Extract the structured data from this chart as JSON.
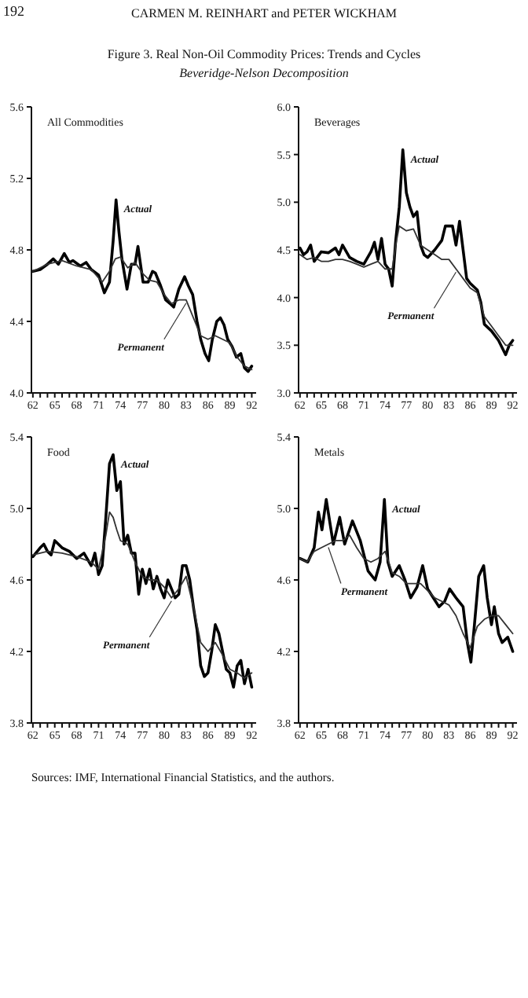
{
  "chart_data": [
    {
      "type": "line",
      "title": "All Commodities",
      "xlim": [
        61.8,
        92.6
      ],
      "ylim": [
        4.0,
        5.6
      ],
      "xticks": [
        62,
        {
          "value": 63,
          "label": null
        },
        {
          "value": 64,
          "label": null
        },
        65,
        {
          "value": 66,
          "label": null
        },
        {
          "value": 67,
          "label": null
        },
        68,
        {
          "value": 69,
          "label": null
        },
        {
          "value": 70,
          "label": null
        },
        71,
        {
          "value": 72,
          "label": null
        },
        {
          "value": 73,
          "label": null
        },
        74,
        {
          "value": 75,
          "label": null
        },
        {
          "value": 76,
          "label": null
        },
        77,
        {
          "value": 78,
          "label": null
        },
        {
          "value": 79,
          "label": null
        },
        80,
        {
          "value": 81,
          "label": null
        },
        {
          "value": 82,
          "label": null
        },
        83,
        {
          "value": 84,
          "label": null
        },
        {
          "value": 85,
          "label": null
        },
        86,
        {
          "value": 87,
          "label": null
        },
        {
          "value": 88,
          "label": null
        },
        89,
        {
          "value": 90,
          "label": null
        },
        {
          "value": 91,
          "label": null
        },
        92
      ],
      "yticks": [
        {
          "value": 4.0,
          "label": "4.0"
        },
        4.4,
        4.8,
        5.2,
        5.6
      ],
      "series": [
        {
          "color": "#000000",
          "x": [
            62,
            63,
            64,
            64.8,
            65.5,
            66.3,
            67,
            67.5,
            68.5,
            69.3,
            70,
            71,
            71.8,
            72.5,
            73,
            73.4,
            73.8,
            74.2,
            74.9,
            75.5,
            76,
            76.4,
            77.1,
            77.8,
            78.4,
            78.8,
            79.5,
            80.2,
            80.8,
            81.3,
            82,
            82.8,
            83.3,
            83.9,
            84.5,
            85,
            85.6,
            86.1,
            86.6,
            87.2,
            87.7,
            88.2,
            88.7,
            89.3,
            89.9,
            90.5,
            91,
            91.5,
            92
          ],
          "values": [
            4.68,
            4.69,
            4.72,
            4.75,
            4.72,
            4.78,
            4.73,
            4.74,
            4.71,
            4.73,
            4.69,
            4.66,
            4.56,
            4.62,
            4.85,
            5.08,
            4.9,
            4.75,
            4.58,
            4.72,
            4.72,
            4.82,
            4.62,
            4.62,
            4.68,
            4.67,
            4.6,
            4.52,
            4.5,
            4.48,
            4.58,
            4.65,
            4.6,
            4.55,
            4.4,
            4.3,
            4.22,
            4.18,
            4.3,
            4.4,
            4.42,
            4.38,
            4.3,
            4.26,
            4.2,
            4.22,
            4.14,
            4.12,
            4.15
          ]
        },
        {
          "color": "#333333",
          "x": [
            62,
            64,
            66,
            68,
            70,
            71.5,
            72.5,
            73.3,
            74,
            75,
            76,
            77,
            78,
            79,
            80,
            81,
            82,
            83,
            84,
            85,
            86,
            87,
            88,
            89,
            90,
            91,
            92
          ],
          "values": [
            4.68,
            4.72,
            4.74,
            4.71,
            4.69,
            4.62,
            4.68,
            4.75,
            4.76,
            4.7,
            4.73,
            4.67,
            4.63,
            4.62,
            4.55,
            4.5,
            4.52,
            4.52,
            4.42,
            4.32,
            4.3,
            4.32,
            4.3,
            4.28,
            4.2,
            4.15,
            4.13
          ]
        }
      ],
      "annotations": [
        "192",
        "CARMEN M. REINHART and PETER WICKHAM",
        "Figure 3. Real Non-Oil Commodity Prices: Trends and Cycles",
        "Beveridge-Nelson Decomposition",
        "Sources: IMF, International Financial Statistics, and the authors.",
        {
          "text": "Actual",
          "x": 73.4,
          "y": 5.08
        },
        {
          "text": "Permanent",
          "x": 83,
          "y": 4.52
        }
      ]
    },
    {
      "type": "line",
      "title": "Beverages",
      "xlim": [
        61.8,
        92.6
      ],
      "ylim": [
        3.0,
        6.0
      ],
      "xticks": [
        62,
        {
          "value": 63,
          "label": null
        },
        {
          "value": 64,
          "label": null
        },
        65,
        {
          "value": 66,
          "label": null
        },
        {
          "value": 67,
          "label": null
        },
        68,
        {
          "value": 69,
          "label": null
        },
        {
          "value": 70,
          "label": null
        },
        71,
        {
          "value": 72,
          "label": null
        },
        {
          "value": 73,
          "label": null
        },
        74,
        {
          "value": 75,
          "label": null
        },
        {
          "value": 76,
          "label": null
        },
        77,
        {
          "value": 78,
          "label": null
        },
        {
          "value": 79,
          "label": null
        },
        80,
        {
          "value": 81,
          "label": null
        },
        {
          "value": 82,
          "label": null
        },
        83,
        {
          "value": 84,
          "label": null
        },
        {
          "value": 85,
          "label": null
        },
        86,
        {
          "value": 87,
          "label": null
        },
        {
          "value": 88,
          "label": null
        },
        89,
        {
          "value": 90,
          "label": null
        },
        {
          "value": 91,
          "label": null
        },
        92
      ],
      "yticks": [
        {
          "value": 3.0,
          "label": "3.0"
        },
        3.5,
        {
          "value": 4.0,
          "label": "4.0"
        },
        4.5,
        {
          "value": 5.0,
          "label": "5.0"
        },
        5.5,
        {
          "value": 6.0,
          "label": "6.0"
        }
      ],
      "series": [
        {
          "color": "#000000",
          "x": [
            62,
            62.5,
            63,
            63.5,
            64,
            65,
            66,
            67,
            67.5,
            68,
            69,
            70,
            71,
            72,
            72.5,
            73,
            73.5,
            74,
            74.5,
            75,
            75.5,
            76,
            76.5,
            77,
            77.5,
            78,
            78.5,
            79,
            79.5,
            80,
            81,
            82,
            82.5,
            83.5,
            84,
            84.5,
            85,
            85.5,
            86,
            87,
            87.5,
            88,
            89,
            90,
            91,
            91.5,
            92
          ],
          "values": [
            4.52,
            4.45,
            4.48,
            4.55,
            4.38,
            4.48,
            4.47,
            4.52,
            4.45,
            4.55,
            4.42,
            4.38,
            4.35,
            4.48,
            4.58,
            4.4,
            4.62,
            4.35,
            4.3,
            4.12,
            4.6,
            4.95,
            5.55,
            5.1,
            4.95,
            4.85,
            4.9,
            4.55,
            4.45,
            4.42,
            4.5,
            4.6,
            4.75,
            4.75,
            4.55,
            4.8,
            4.5,
            4.2,
            4.15,
            4.08,
            3.95,
            3.72,
            3.65,
            3.55,
            3.4,
            3.5,
            3.55
          ]
        },
        {
          "color": "#333333",
          "x": [
            62,
            63,
            64,
            65,
            66,
            67,
            68,
            69,
            70,
            71,
            72,
            73,
            74,
            75,
            75.5,
            76,
            77,
            78,
            79,
            80,
            81,
            82,
            83,
            84,
            85,
            86,
            87,
            88,
            89,
            90,
            91,
            92
          ],
          "values": [
            4.45,
            4.4,
            4.42,
            4.38,
            4.38,
            4.4,
            4.4,
            4.38,
            4.35,
            4.32,
            4.35,
            4.38,
            4.3,
            4.3,
            4.55,
            4.75,
            4.7,
            4.72,
            4.55,
            4.5,
            4.45,
            4.4,
            4.4,
            4.3,
            4.2,
            4.1,
            4.05,
            3.8,
            3.7,
            3.6,
            3.5,
            3.5
          ]
        }
      ],
      "annotations": [
        {
          "text": "Actual",
          "x": 76.5,
          "y": 5.55
        },
        {
          "text": "Permanent",
          "x": 84,
          "y": 4.3
        }
      ]
    },
    {
      "type": "line",
      "title": "Food",
      "xlim": [
        61.8,
        92.6
      ],
      "ylim": [
        3.8,
        5.4
      ],
      "xticks": [
        62,
        {
          "value": 63,
          "label": null
        },
        {
          "value": 64,
          "label": null
        },
        65,
        {
          "value": 66,
          "label": null
        },
        {
          "value": 67,
          "label": null
        },
        68,
        {
          "value": 69,
          "label": null
        },
        {
          "value": 70,
          "label": null
        },
        71,
        {
          "value": 72,
          "label": null
        },
        {
          "value": 73,
          "label": null
        },
        74,
        {
          "value": 75,
          "label": null
        },
        {
          "value": 76,
          "label": null
        },
        77,
        {
          "value": 78,
          "label": null
        },
        {
          "value": 79,
          "label": null
        },
        80,
        {
          "value": 81,
          "label": null
        },
        {
          "value": 82,
          "label": null
        },
        83,
        {
          "value": 84,
          "label": null
        },
        {
          "value": 85,
          "label": null
        },
        86,
        {
          "value": 87,
          "label": null
        },
        {
          "value": 88,
          "label": null
        },
        89,
        {
          "value": 90,
          "label": null
        },
        {
          "value": 91,
          "label": null
        },
        92
      ],
      "yticks": [
        3.8,
        4.2,
        4.6,
        {
          "value": 5.0,
          "label": "5.0"
        },
        5.4
      ],
      "series": [
        {
          "color": "#000000",
          "x": [
            62,
            63,
            63.5,
            64,
            64.5,
            65,
            66,
            67,
            68,
            69,
            70,
            70.5,
            71,
            71.5,
            72,
            72.5,
            73,
            73.5,
            74,
            74.5,
            75,
            75.5,
            76,
            76.5,
            77,
            77.5,
            78,
            78.5,
            79,
            79.5,
            80,
            80.5,
            81,
            81.5,
            82,
            82.5,
            83,
            83.5,
            84,
            84.5,
            85,
            85.5,
            86,
            86.5,
            87,
            87.5,
            88,
            88.5,
            89,
            89.5,
            90,
            90.5,
            91,
            91.5,
            92
          ],
          "values": [
            4.73,
            4.78,
            4.8,
            4.76,
            4.74,
            4.82,
            4.78,
            4.76,
            4.72,
            4.75,
            4.68,
            4.75,
            4.63,
            4.68,
            4.95,
            5.25,
            5.3,
            5.1,
            5.15,
            4.8,
            4.85,
            4.75,
            4.75,
            4.52,
            4.66,
            4.58,
            4.66,
            4.55,
            4.62,
            4.55,
            4.5,
            4.6,
            4.55,
            4.5,
            4.52,
            4.68,
            4.68,
            4.6,
            4.45,
            4.32,
            4.12,
            4.06,
            4.08,
            4.2,
            4.35,
            4.3,
            4.2,
            4.1,
            4.08,
            4.0,
            4.12,
            4.15,
            4.02,
            4.1,
            4.0
          ]
        },
        {
          "color": "#333333",
          "x": [
            62,
            64,
            66,
            68,
            70,
            71,
            72,
            72.5,
            73,
            73.5,
            74,
            75,
            76,
            77,
            78,
            79,
            80,
            81,
            82,
            83,
            84,
            85,
            86,
            87,
            88,
            89,
            90,
            91,
            92
          ],
          "values": [
            4.74,
            4.76,
            4.75,
            4.73,
            4.7,
            4.66,
            4.85,
            4.98,
            4.95,
            4.88,
            4.82,
            4.8,
            4.7,
            4.62,
            4.6,
            4.6,
            4.56,
            4.5,
            4.55,
            4.62,
            4.45,
            4.25,
            4.2,
            4.25,
            4.18,
            4.1,
            4.08,
            4.05,
            4.08
          ]
        }
      ],
      "annotations": [
        {
          "text": "Actual",
          "x": 73,
          "y": 5.3
        },
        {
          "text": "Permanent",
          "x": 81,
          "y": 4.5
        }
      ]
    },
    {
      "type": "line",
      "title": "Metals",
      "xlim": [
        61.8,
        92.6
      ],
      "ylim": [
        3.8,
        5.4
      ],
      "xticks": [
        62,
        {
          "value": 63,
          "label": null
        },
        {
          "value": 64,
          "label": null
        },
        65,
        {
          "value": 66,
          "label": null
        },
        {
          "value": 67,
          "label": null
        },
        68,
        {
          "value": 69,
          "label": null
        },
        {
          "value": 70,
          "label": null
        },
        71,
        {
          "value": 72,
          "label": null
        },
        {
          "value": 73,
          "label": null
        },
        74,
        {
          "value": 75,
          "label": null
        },
        {
          "value": 76,
          "label": null
        },
        77,
        {
          "value": 78,
          "label": null
        },
        {
          "value": 79,
          "label": null
        },
        80,
        {
          "value": 81,
          "label": null
        },
        {
          "value": 82,
          "label": null
        },
        83,
        {
          "value": 84,
          "label": null
        },
        {
          "value": 85,
          "label": null
        },
        86,
        {
          "value": 87,
          "label": null
        },
        {
          "value": 88,
          "label": null
        },
        89,
        {
          "value": 90,
          "label": null
        },
        {
          "value": 91,
          "label": null
        },
        92
      ],
      "yticks": [
        3.8,
        4.2,
        4.6,
        {
          "value": 5.0,
          "label": "5.0"
        },
        5.4
      ],
      "series": [
        {
          "color": "#000000",
          "x": [
            62,
            63.1,
            64,
            64.6,
            65.1,
            65.7,
            66.7,
            67.6,
            68.3,
            69.4,
            70.5,
            71.6,
            72.6,
            73.3,
            73.9,
            74.4,
            75,
            76,
            76.8,
            77.6,
            78.5,
            79.3,
            80,
            80.8,
            81.6,
            82.4,
            83.1,
            84,
            85,
            85.6,
            86.1,
            86.6,
            87.2,
            87.9,
            88.4,
            89,
            89.4,
            90,
            90.5,
            91.3,
            92
          ],
          "values": [
            4.72,
            4.7,
            4.78,
            4.98,
            4.88,
            5.05,
            4.8,
            4.95,
            4.8,
            4.93,
            4.82,
            4.65,
            4.6,
            4.7,
            5.05,
            4.7,
            4.62,
            4.68,
            4.6,
            4.5,
            4.56,
            4.68,
            4.55,
            4.5,
            4.45,
            4.48,
            4.55,
            4.5,
            4.45,
            4.25,
            4.14,
            4.35,
            4.62,
            4.68,
            4.5,
            4.35,
            4.45,
            4.3,
            4.25,
            4.28,
            4.2
          ]
        },
        {
          "color": "#333333",
          "x": [
            62,
            63,
            64,
            65,
            66,
            67,
            68,
            69,
            70,
            71,
            72,
            73,
            74,
            75,
            76,
            77,
            78,
            79,
            80,
            81,
            82,
            83,
            84,
            85,
            86,
            87,
            88,
            89,
            90,
            91,
            92
          ],
          "values": [
            4.72,
            4.7,
            4.76,
            4.78,
            4.8,
            4.82,
            4.82,
            4.85,
            4.78,
            4.72,
            4.7,
            4.72,
            4.76,
            4.64,
            4.62,
            4.58,
            4.58,
            4.58,
            4.54,
            4.5,
            4.48,
            4.46,
            4.4,
            4.3,
            4.22,
            4.34,
            4.38,
            4.4,
            4.4,
            4.35,
            4.3
          ]
        }
      ],
      "annotations": [
        {
          "text": "Actual",
          "x": 73.9,
          "y": 5.05
        },
        {
          "text": "Permanent",
          "x": 66,
          "y": 4.8
        }
      ]
    }
  ]
}
